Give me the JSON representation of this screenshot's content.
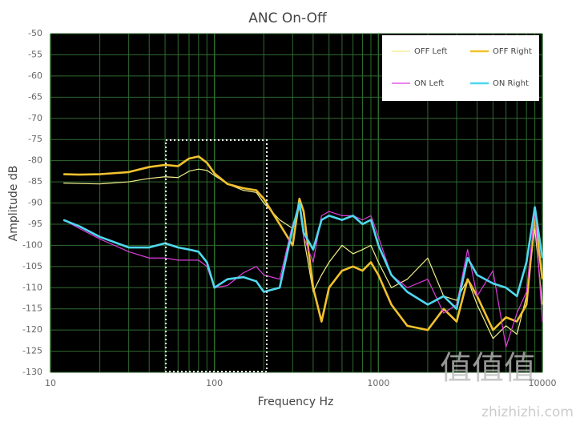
{
  "chart_data": {
    "type": "line",
    "title": "ANC On-Off",
    "x_label": "Frequency Hz",
    "y_label": "Amplitude dB",
    "x_scale": "log",
    "grid": true,
    "legend": "top-right",
    "xlim": [
      10,
      10000
    ],
    "ylim": [
      -130,
      -50
    ],
    "xticks": [
      10,
      100,
      1000,
      10000
    ],
    "yticks": [
      -50,
      -55,
      -60,
      -65,
      -70,
      -75,
      -80,
      -85,
      -90,
      -95,
      -100,
      -105,
      -110,
      -115,
      -120,
      -125,
      -130
    ],
    "x": [
      12,
      15,
      20,
      30,
      40,
      50,
      60,
      70,
      80,
      90,
      100,
      120,
      150,
      180,
      200,
      250,
      300,
      330,
      350,
      400,
      450,
      500,
      600,
      700,
      800,
      900,
      1000,
      1200,
      1500,
      2000,
      2500,
      3000,
      3500,
      4000,
      5000,
      6000,
      7000,
      8000,
      9000,
      10000
    ],
    "series": [
      {
        "name": "OFF Left",
        "color": "#f3ee8c",
        "line_width": 1.2,
        "values": [
          -85.3,
          -85.4,
          -85.5,
          -85,
          -84.2,
          -83.8,
          -84,
          -82.5,
          -82,
          -82.3,
          -83.5,
          -85.5,
          -87,
          -87.5,
          -90,
          -94,
          -96,
          -91,
          -98,
          -111,
          -107,
          -104,
          -100,
          -102,
          -101,
          -100,
          -104,
          -110,
          -108,
          -103,
          -112,
          -113,
          -108,
          -114,
          -122,
          -119,
          -121,
          -112,
          -96,
          -114
        ]
      },
      {
        "name": "OFF Right",
        "color": "#f2c12e",
        "line_width": 2.6,
        "values": [
          -83.2,
          -83.3,
          -83.2,
          -82.7,
          -81.5,
          -81,
          -81.3,
          -79.5,
          -79,
          -80.5,
          -83,
          -85.5,
          -86.5,
          -87,
          -89,
          -95,
          -100,
          -89,
          -92,
          -110,
          -118,
          -110,
          -106,
          -105,
          -106,
          -104,
          -107,
          -114,
          -119,
          -120,
          -115,
          -118,
          -108,
          -112,
          -120,
          -117,
          -118,
          -114,
          -93,
          -108
        ]
      },
      {
        "name": "ON Left",
        "color": "#dd3ddd",
        "line_width": 1.2,
        "values": [
          -94,
          -96,
          -98.5,
          -101.5,
          -103,
          -103,
          -103.5,
          -103.5,
          -103.5,
          -105,
          -110,
          -109.5,
          -106.5,
          -105,
          -107,
          -108,
          -95,
          -91,
          -98,
          -104,
          -93,
          -92,
          -93,
          -93,
          -94,
          -93,
          -98,
          -107,
          -110,
          -108,
          -116,
          -114,
          -101,
          -112,
          -106,
          -124,
          -116,
          -111,
          -92,
          -118
        ]
      },
      {
        "name": "ON Right",
        "color": "#4fd8ef",
        "line_width": 2.6,
        "values": [
          -94,
          -95.5,
          -98,
          -100.5,
          -100.5,
          -99.5,
          -100.5,
          -101,
          -101.5,
          -104,
          -110,
          -108,
          -107.5,
          -108.5,
          -111,
          -110,
          -96,
          -90,
          -97,
          -101,
          -94,
          -93,
          -94,
          -93,
          -95,
          -94,
          -100,
          -107,
          -111,
          -114,
          -112,
          -115,
          -103,
          -107,
          -109,
          -110,
          -112,
          -104,
          -91,
          -103
        ]
      }
    ],
    "watermark": "zhizhizhi.com",
    "logo": "值值值"
  }
}
